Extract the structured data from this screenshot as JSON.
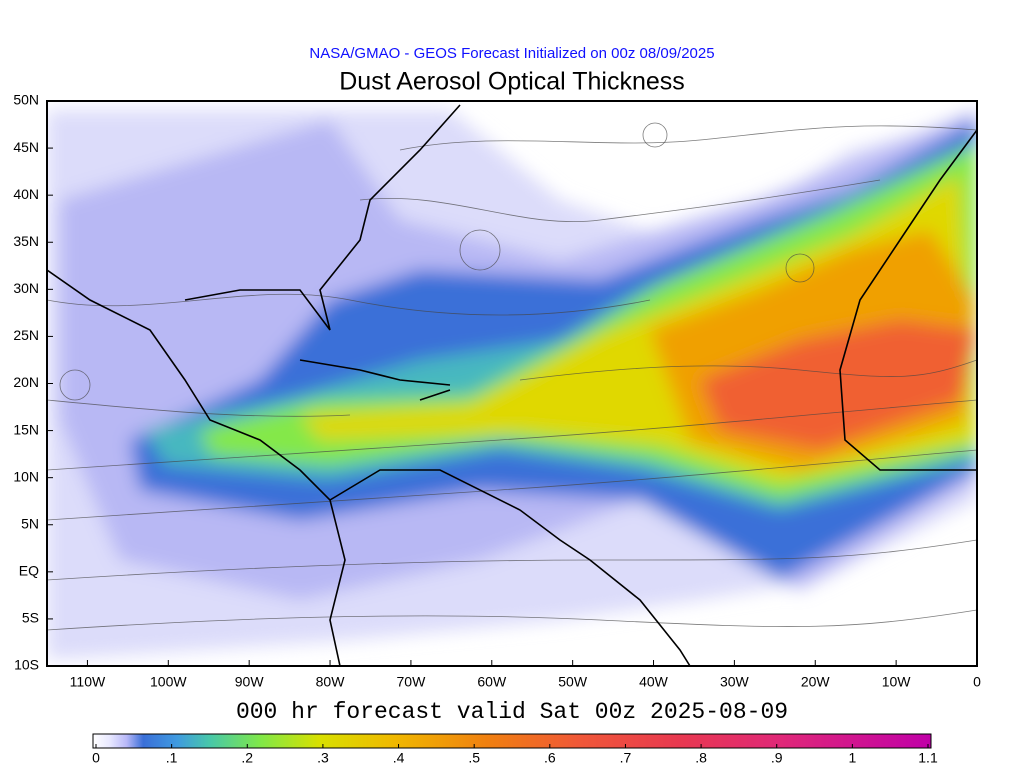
{
  "header": {
    "subtitle": "NASA/GMAO - GEOS Forecast Initialized on 00z 08/09/2025",
    "title": "Dust Aerosol Optical Thickness"
  },
  "map": {
    "lat_ticks": [
      {
        "value": 50,
        "label": "50N"
      },
      {
        "value": 45,
        "label": "45N"
      },
      {
        "value": 40,
        "label": "40N"
      },
      {
        "value": 35,
        "label": "35N"
      },
      {
        "value": 30,
        "label": "30N"
      },
      {
        "value": 25,
        "label": "25N"
      },
      {
        "value": 20,
        "label": "20N"
      },
      {
        "value": 15,
        "label": "15N"
      },
      {
        "value": 10,
        "label": "10N"
      },
      {
        "value": 5,
        "label": "5N"
      },
      {
        "value": 0,
        "label": "EQ"
      },
      {
        "value": -5,
        "label": "5S"
      },
      {
        "value": -10,
        "label": "10S"
      }
    ],
    "lon_ticks": [
      {
        "value": -110,
        "label": "110W"
      },
      {
        "value": -100,
        "label": "100W"
      },
      {
        "value": -90,
        "label": "90W"
      },
      {
        "value": -80,
        "label": "80W"
      },
      {
        "value": -70,
        "label": "70W"
      },
      {
        "value": -60,
        "label": "60W"
      },
      {
        "value": -50,
        "label": "50W"
      },
      {
        "value": -40,
        "label": "40W"
      },
      {
        "value": -30,
        "label": "30W"
      },
      {
        "value": -20,
        "label": "20W"
      },
      {
        "value": -10,
        "label": "10W"
      },
      0
    ],
    "valid_time": "000 hr forecast valid Sat 00z 2025-08-09"
  },
  "colorbar": {
    "ticks": [
      0,
      {
        "value": 0.1,
        "label": ".1"
      },
      {
        "value": 0.2,
        "label": ".2"
      },
      {
        "value": 0.3,
        "label": ".3"
      },
      {
        "value": 0.4,
        "label": ".4"
      },
      {
        "value": 0.5,
        "label": ".5"
      },
      {
        "value": 0.6,
        "label": ".6"
      },
      {
        "value": 0.7,
        "label": ".7"
      },
      {
        "value": 0.8,
        "label": ".8"
      },
      {
        "value": 0.9,
        "label": ".9"
      },
      1,
      {
        "value": 1.1,
        "label": "1.1"
      }
    ]
  }
}
